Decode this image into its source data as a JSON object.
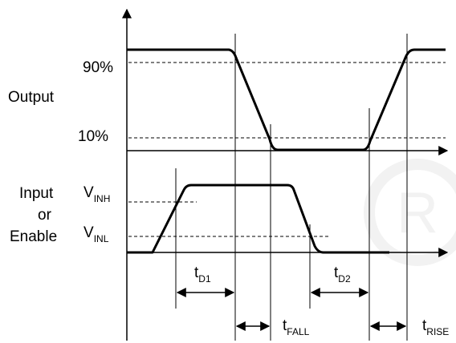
{
  "output_label": "Output",
  "input_label_line1": "Input",
  "input_label_line2": "or",
  "input_label_line3": "Enable",
  "level_90": "90%",
  "level_10": "10%",
  "vinh": {
    "main": "V",
    "sub": "INH"
  },
  "vinl": {
    "main": "V",
    "sub": "INL"
  },
  "td1": {
    "main": "t",
    "sub": "D1"
  },
  "td2": {
    "main": "t",
    "sub": "D2"
  },
  "tfall": {
    "main": "t",
    "sub": "FALL"
  },
  "trise": {
    "main": "t",
    "sub": "RISE"
  },
  "watermark_letter": "R"
}
